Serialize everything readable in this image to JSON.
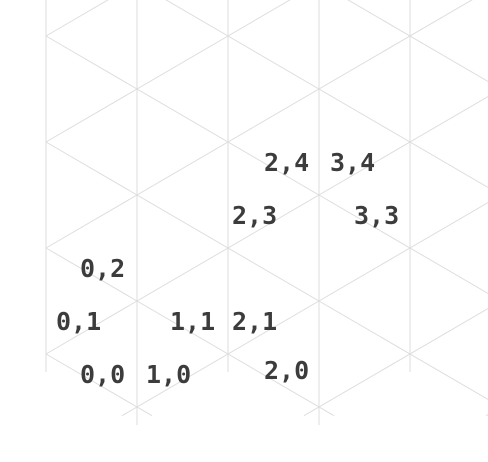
{
  "grid": {
    "line_color": "#dedede",
    "label_color": "#3c3c3c"
  },
  "labels": [
    {
      "text": "0,0",
      "col": 0,
      "row": 0,
      "slot": "right"
    },
    {
      "text": "1,0",
      "col": 1,
      "row": 0,
      "slot": "left"
    },
    {
      "text": "2,0",
      "col": 2,
      "row": 0,
      "slot": "right"
    },
    {
      "text": "0,1",
      "col": 0,
      "row": 1,
      "slot": "left"
    },
    {
      "text": "1,1",
      "col": 1,
      "row": 1,
      "slot": "right"
    },
    {
      "text": "2,1",
      "col": 2,
      "row": 1,
      "slot": "left"
    },
    {
      "text": "0,2",
      "col": 0,
      "row": 2,
      "slot": "right"
    },
    {
      "text": "2,3",
      "col": 2,
      "row": 3,
      "slot": "left"
    },
    {
      "text": "3,3",
      "col": 3,
      "row": 3,
      "slot": "right"
    },
    {
      "text": "2,4",
      "col": 2,
      "row": 4,
      "slot": "right"
    },
    {
      "text": "3,4",
      "col": 3,
      "row": 4,
      "slot": "left"
    }
  ]
}
